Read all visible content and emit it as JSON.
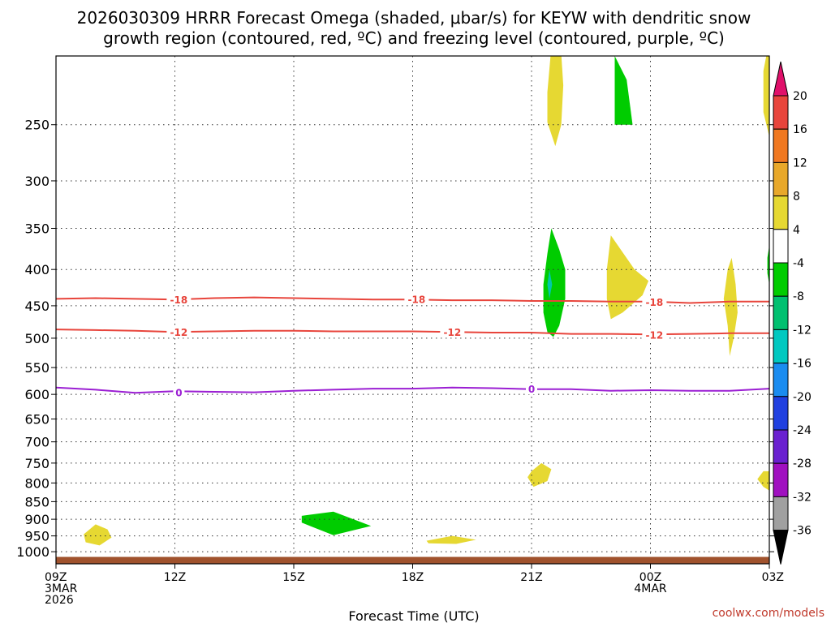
{
  "chart_data": {
    "type": "heatmap",
    "title_line1": "2026030309 HRRR Forecast Omega (shaded, μbar/s) for KEYW with dendritic snow",
    "title_line2": "growth region (contoured, red, ºC) and freezing level (contoured, purple, ºC)",
    "xlabel": "Forecast Time (UTC)",
    "credit": "coolwx.com/models",
    "xlim_hours": [
      0,
      18
    ],
    "x_ticks": [
      {
        "hour": 0,
        "lines": [
          "09Z",
          "3MAR",
          "2026"
        ]
      },
      {
        "hour": 3,
        "lines": [
          "12Z"
        ]
      },
      {
        "hour": 6,
        "lines": [
          "15Z"
        ]
      },
      {
        "hour": 9,
        "lines": [
          "18Z"
        ]
      },
      {
        "hour": 12,
        "lines": [
          "21Z"
        ]
      },
      {
        "hour": 15,
        "lines": [
          "00Z",
          "4MAR"
        ]
      },
      {
        "hour": 18,
        "lines": [
          "03Z"
        ]
      }
    ],
    "y_axis": {
      "scale": "log",
      "range": [
        1040,
        200
      ],
      "inverted": true,
      "ticks": [
        250,
        300,
        350,
        400,
        450,
        500,
        550,
        600,
        650,
        700,
        750,
        800,
        850,
        900,
        950,
        1000
      ]
    },
    "grid": true,
    "surface_pressure": 1017,
    "surface_color": "#a0522d",
    "contours": [
      {
        "name": "-18",
        "color": "#e8453c",
        "points": [
          [
            0,
            440
          ],
          [
            1,
            439
          ],
          [
            2,
            440
          ],
          [
            3,
            441
          ],
          [
            4,
            439
          ],
          [
            5,
            438
          ],
          [
            6,
            439
          ],
          [
            7,
            440
          ],
          [
            8,
            441
          ],
          [
            9,
            441
          ],
          [
            10,
            442
          ],
          [
            11,
            442
          ],
          [
            12,
            443
          ],
          [
            13,
            443
          ],
          [
            14,
            444
          ],
          [
            15,
            444
          ],
          [
            16,
            446
          ],
          [
            17,
            444
          ],
          [
            18,
            444
          ]
        ],
        "labels": [
          {
            "hour": 3.1,
            "p": 441
          },
          {
            "hour": 9.1,
            "p": 440
          },
          {
            "hour": 15.1,
            "p": 444
          }
        ]
      },
      {
        "name": "-12",
        "color": "#e8453c",
        "points": [
          [
            0,
            486
          ],
          [
            1,
            487
          ],
          [
            2,
            488
          ],
          [
            3,
            490
          ],
          [
            4,
            489
          ],
          [
            5,
            488
          ],
          [
            6,
            488
          ],
          [
            7,
            489
          ],
          [
            8,
            489
          ],
          [
            9,
            489
          ],
          [
            10,
            490
          ],
          [
            11,
            491
          ],
          [
            12,
            491
          ],
          [
            13,
            493
          ],
          [
            14,
            493
          ],
          [
            15,
            494
          ],
          [
            16,
            493
          ],
          [
            17,
            492
          ],
          [
            18,
            492
          ]
        ],
        "labels": [
          {
            "hour": 3.1,
            "p": 490
          },
          {
            "hour": 10.0,
            "p": 490
          },
          {
            "hour": 15.1,
            "p": 494
          }
        ]
      },
      {
        "name": "0",
        "color": "#9b1fd3",
        "points": [
          [
            0,
            587
          ],
          [
            1,
            591
          ],
          [
            2,
            597
          ],
          [
            3,
            594
          ],
          [
            4,
            595
          ],
          [
            5,
            596
          ],
          [
            6,
            593
          ],
          [
            7,
            591
          ],
          [
            8,
            589
          ],
          [
            9,
            589
          ],
          [
            10,
            587
          ],
          [
            11,
            588
          ],
          [
            12,
            590
          ],
          [
            13,
            590
          ],
          [
            14,
            593
          ],
          [
            15,
            592
          ],
          [
            16,
            593
          ],
          [
            17,
            593
          ],
          [
            18,
            589
          ]
        ],
        "labels": [
          {
            "hour": 3.1,
            "p": 596
          },
          {
            "hour": 12.0,
            "p": 589
          }
        ]
      }
    ],
    "omega_regions": [
      {
        "color": "#e6d832",
        "points": [
          [
            12.55,
            180
          ],
          [
            12.7,
            180
          ],
          [
            12.8,
            220
          ],
          [
            12.75,
            250
          ],
          [
            12.6,
            268
          ],
          [
            12.4,
            248
          ],
          [
            12.4,
            225
          ]
        ]
      },
      {
        "color": "#00cc00",
        "points": [
          [
            14.1,
            200
          ],
          [
            14.4,
            216
          ],
          [
            14.55,
            250
          ],
          [
            14.1,
            250
          ]
        ]
      },
      {
        "color": "#e6d832",
        "points": [
          [
            18.0,
            190
          ],
          [
            17.85,
            210
          ],
          [
            17.85,
            240
          ],
          [
            18.0,
            260
          ]
        ]
      },
      {
        "color": "#00cc00",
        "points": [
          [
            12.5,
            350
          ],
          [
            12.7,
            375
          ],
          [
            12.85,
            400
          ],
          [
            12.85,
            440
          ],
          [
            12.7,
            480
          ],
          [
            12.55,
            498
          ],
          [
            12.4,
            490
          ],
          [
            12.3,
            460
          ],
          [
            12.3,
            420
          ],
          [
            12.4,
            380
          ]
        ]
      },
      {
        "color": "#00c8a8",
        "points": [
          [
            12.45,
            400
          ],
          [
            12.52,
            420
          ],
          [
            12.45,
            440
          ],
          [
            12.4,
            420
          ]
        ]
      },
      {
        "color": "#e6d832",
        "points": [
          [
            14.0,
            358
          ],
          [
            14.6,
            400
          ],
          [
            14.95,
            415
          ],
          [
            14.8,
            435
          ],
          [
            14.3,
            460
          ],
          [
            14.0,
            470
          ],
          [
            13.9,
            440
          ],
          [
            13.9,
            400
          ]
        ]
      },
      {
        "color": "#e6d832",
        "points": [
          [
            17.05,
            385
          ],
          [
            17.15,
            420
          ],
          [
            17.2,
            460
          ],
          [
            17.1,
            500
          ],
          [
            17.0,
            530
          ],
          [
            16.95,
            480
          ],
          [
            16.85,
            440
          ],
          [
            16.95,
            400
          ]
        ]
      },
      {
        "color": "#00cc00",
        "points": [
          [
            18.0,
            370
          ],
          [
            17.95,
            385
          ],
          [
            17.95,
            405
          ],
          [
            18.0,
            420
          ]
        ]
      },
      {
        "color": "#e6d832",
        "points": [
          [
            12.0,
            770
          ],
          [
            12.25,
            750
          ],
          [
            12.5,
            765
          ],
          [
            12.4,
            795
          ],
          [
            12.05,
            810
          ],
          [
            11.9,
            785
          ]
        ]
      },
      {
        "color": "#e6d832",
        "points": [
          [
            17.7,
            790
          ],
          [
            17.85,
            770
          ],
          [
            18.0,
            770
          ],
          [
            18.0,
            820
          ],
          [
            17.85,
            810
          ]
        ]
      },
      {
        "color": "#00cc00",
        "points": [
          [
            6.2,
            890
          ],
          [
            7.0,
            878
          ],
          [
            7.95,
            920
          ],
          [
            7.0,
            948
          ],
          [
            6.2,
            910
          ]
        ]
      },
      {
        "color": "#e6d832",
        "points": [
          [
            0.7,
            945
          ],
          [
            1.0,
            915
          ],
          [
            1.3,
            930
          ],
          [
            1.4,
            955
          ],
          [
            1.1,
            980
          ],
          [
            0.75,
            970
          ]
        ]
      },
      {
        "color": "#e6d832",
        "points": [
          [
            9.35,
            965
          ],
          [
            10.0,
            950
          ],
          [
            10.6,
            962
          ],
          [
            10.1,
            975
          ],
          [
            9.4,
            973
          ]
        ]
      }
    ],
    "colorbar": {
      "top_arrow_color": "#e0106a",
      "bottom_arrow_color": "#000000",
      "bins": [
        {
          "color": "#e8453c"
        },
        {
          "color": "#f07820"
        },
        {
          "color": "#e8a82a"
        },
        {
          "color": "#e6d832"
        },
        {
          "color": "#ffffff"
        },
        {
          "color": "#00cc00"
        },
        {
          "color": "#00c070"
        },
        {
          "color": "#00c8c0"
        },
        {
          "color": "#1a8cf0"
        },
        {
          "color": "#2040e0"
        },
        {
          "color": "#6a20d0"
        },
        {
          "color": "#a010c0"
        },
        {
          "color": "#a0a0a0"
        }
      ],
      "labels": [
        "20",
        "16",
        "12",
        "8",
        "4",
        "-4",
        "-8",
        "-12",
        "-16",
        "-20",
        "-24",
        "-28",
        "-32",
        "-36"
      ]
    }
  }
}
